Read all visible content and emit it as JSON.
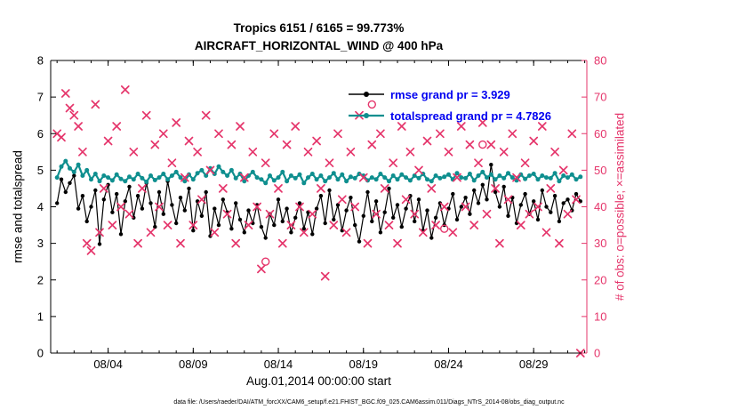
{
  "footer": "data file: /Users/raeder/DAI/ATM_forcXX/CAM6_setup/f.e21.FHIST_BGC.f09_025.CAM6assim.011/Diags_NTrS_2014-08/obs_diag_output.nc",
  "colors": {
    "rmse": "#000000",
    "totalspread": "#0f8f8f",
    "obs": "#e5356b",
    "legend_text": "#0000f0",
    "axis": "#000000"
  },
  "chart_data": {
    "type": "line",
    "title": "Tropics 6151 / 6165 = 99.773%",
    "subtitle": "AIRCRAFT_HORIZONTAL_WIND @ 400 hPa",
    "xlabel": "Aug.01,2014 00:00:00 start",
    "ylabel_left": "rmse and totalspread",
    "ylabel_right": "# of obs: o=possible; ×=assimilated",
    "ylim_left": [
      0,
      8
    ],
    "yticks_left": [
      0,
      1,
      2,
      3,
      4,
      5,
      6,
      7,
      8
    ],
    "ylim_right": [
      0,
      80
    ],
    "yticks_right": [
      0,
      10,
      20,
      30,
      40,
      50,
      60,
      70,
      80
    ],
    "x_tick_labels": [
      "08/04",
      "08/09",
      "08/14",
      "08/19",
      "08/24",
      "08/29"
    ],
    "x_tick_indices": [
      12,
      32,
      52,
      72,
      92,
      112
    ],
    "points_per_day": 4,
    "n_points": 124,
    "grid": false,
    "legend_position": "top-right-inside",
    "series": [
      {
        "name": "rmse",
        "label": "rmse grand pr = 3.929",
        "color": "#000000",
        "axis": "left",
        "marker": "dot",
        "values": [
          4.1,
          4.75,
          4.4,
          4.65,
          4.85,
          3.95,
          4.3,
          3.6,
          4.0,
          4.45,
          2.98,
          4.2,
          4.6,
          3.85,
          4.35,
          3.25,
          4.15,
          4.55,
          3.7,
          4.3,
          3.95,
          4.65,
          4.1,
          3.45,
          4.4,
          3.8,
          4.7,
          4.05,
          3.55,
          4.25,
          3.9,
          4.5,
          3.35,
          4.15,
          3.75,
          4.4,
          3.2,
          3.95,
          3.5,
          4.2,
          3.85,
          3.4,
          4.1,
          3.65,
          3.3,
          3.9,
          3.55,
          4.05,
          3.45,
          3.15,
          3.8,
          3.5,
          4.2,
          3.6,
          3.95,
          3.3,
          3.7,
          4.1,
          3.4,
          3.85,
          3.25,
          3.95,
          4.3,
          3.55,
          4.45,
          3.65,
          4.05,
          3.35,
          3.9,
          4.25,
          3.5,
          3.05,
          3.75,
          4.4,
          3.6,
          4.15,
          3.3,
          3.85,
          4.5,
          3.7,
          4.05,
          3.45,
          3.95,
          4.3,
          3.6,
          4.2,
          3.35,
          3.9,
          3.15,
          3.7,
          4.1,
          3.5,
          3.95,
          4.35,
          3.65,
          4.0,
          4.25,
          3.8,
          4.45,
          4.1,
          4.6,
          4.2,
          5.15,
          4.4,
          4.0,
          4.55,
          3.75,
          4.25,
          3.55,
          4.05,
          4.35,
          3.8,
          4.15,
          3.65,
          4.45,
          4.0,
          3.85,
          4.3,
          3.6,
          4.1,
          4.2,
          3.9,
          4.35,
          4.15
        ]
      },
      {
        "name": "totalspread",
        "label": "totalspread grand pr = 4.7826",
        "color": "#0f8f8f",
        "axis": "left",
        "marker": "dot",
        "values": [
          4.8,
          5.1,
          5.25,
          5.05,
          4.95,
          5.15,
          4.85,
          5.0,
          4.75,
          4.9,
          4.7,
          4.85,
          4.8,
          4.72,
          4.88,
          4.76,
          4.7,
          4.82,
          4.75,
          4.9,
          4.78,
          4.68,
          4.85,
          4.73,
          4.8,
          4.9,
          4.75,
          4.85,
          4.95,
          4.8,
          4.7,
          4.88,
          4.75,
          4.92,
          5.0,
          4.85,
          5.05,
          4.9,
          5.1,
          4.95,
          4.85,
          5.0,
          4.78,
          4.9,
          4.7,
          4.85,
          4.95,
          4.8,
          4.75,
          4.65,
          4.85,
          4.72,
          4.8,
          4.95,
          4.7,
          4.85,
          4.78,
          4.88,
          4.65,
          4.8,
          4.9,
          4.75,
          4.85,
          4.7,
          4.8,
          4.92,
          4.75,
          4.88,
          4.7,
          4.82,
          4.78,
          4.9,
          4.85,
          4.72,
          4.8,
          4.75,
          4.9,
          4.8,
          4.7,
          4.85,
          4.75,
          4.88,
          4.8,
          4.72,
          4.85,
          4.78,
          4.9,
          4.75,
          4.7,
          4.85,
          4.78,
          4.82,
          4.88,
          4.75,
          4.92,
          4.8,
          4.78,
          4.9,
          4.72,
          4.85,
          4.95,
          4.8,
          4.88,
          4.75,
          4.85,
          4.78,
          4.92,
          4.8,
          4.72,
          4.88,
          4.76,
          4.85,
          4.9,
          4.75,
          4.85,
          4.8,
          4.78,
          4.92,
          4.7,
          4.85,
          4.8,
          4.88,
          4.75,
          4.82
        ]
      },
      {
        "name": "obs_assimilated",
        "label": "×=assimilated",
        "color": "#e5356b",
        "axis": "right",
        "marker": "x",
        "values": [
          60,
          59,
          71,
          67,
          65,
          62,
          55,
          30,
          28,
          68,
          33,
          45,
          58,
          35,
          62,
          40,
          72,
          38,
          55,
          30,
          45,
          65,
          33,
          57,
          40,
          60,
          35,
          52,
          63,
          30,
          48,
          58,
          35,
          55,
          42,
          65,
          50,
          33,
          60,
          45,
          38,
          57,
          30,
          62,
          48,
          35,
          55,
          40,
          23,
          52,
          38,
          60,
          45,
          30,
          57,
          35,
          62,
          40,
          33,
          55,
          38,
          58,
          45,
          21,
          52,
          35,
          60,
          42,
          33,
          55,
          40,
          65,
          48,
          30,
          57,
          38,
          60,
          45,
          35,
          52,
          30,
          62,
          42,
          55,
          38,
          50,
          33,
          58,
          45,
          35,
          60,
          40,
          55,
          33,
          48,
          62,
          40,
          57,
          35,
          52,
          63,
          38,
          57,
          45,
          30,
          55,
          42,
          60,
          48,
          35,
          52,
          38,
          58,
          40,
          62,
          33,
          45,
          55,
          30,
          50,
          38,
          60,
          42,
          0
        ]
      },
      {
        "name": "obs_possible",
        "label": "o=possible",
        "color": "#e5356b",
        "axis": "right",
        "marker": "open-circle",
        "points": [
          {
            "index": 49,
            "value": 25
          },
          {
            "index": 74,
            "value": 68
          },
          {
            "index": 91,
            "value": 34
          },
          {
            "index": 100,
            "value": 57
          }
        ]
      }
    ]
  }
}
